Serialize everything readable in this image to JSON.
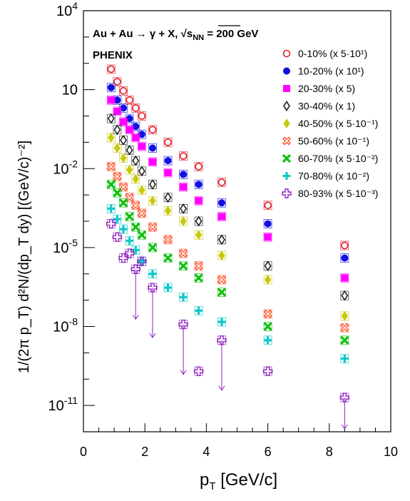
{
  "chart_data": {
    "type": "scatter",
    "title": "Au + Au → γ + X, √s",
    "title_sub": "NN",
    "title_tail": " = 200 GeV",
    "experiment": "PHENIX",
    "xlabel": "p",
    "xlabel_sub": "T",
    "xlabel_unit": " [GeV/c]",
    "ylabel": "1/(2π p_T) d²N/(dp_T dy) [(GeV/c)⁻²]",
    "xlim": [
      0,
      10
    ],
    "ylim": [
      1e-12,
      10000
    ],
    "yscale": "log",
    "x_ticks": [
      "0",
      "2",
      "4",
      "6",
      "8",
      "10"
    ],
    "y_ticks": [
      {
        "base": "10",
        "exp": "4"
      },
      {
        "base": "10",
        "exp": ""
      },
      {
        "base": "10",
        "exp": "-2"
      },
      {
        "base": "10",
        "exp": "-5"
      },
      {
        "base": "10",
        "exp": "-8"
      },
      {
        "base": "10",
        "exp": "-11"
      }
    ],
    "grid": false,
    "legend_position": "top-right",
    "x": [
      0.9,
      1.1,
      1.3,
      1.5,
      1.7,
      1.9,
      2.25,
      2.75,
      3.25,
      3.75,
      4.5,
      6.0,
      8.5
    ],
    "series": [
      {
        "name": "0-10% (x 5·10¹)",
        "color": "#e0202a",
        "marker": "open-circle",
        "values": [
          60,
          20,
          9,
          4,
          2,
          1,
          0.3,
          0.1,
          0.03,
          0.012,
          0.003,
          0.0004,
          1.2e-05
        ]
      },
      {
        "name": "10-20% (x 10¹)",
        "color": "#1010e0",
        "marker": "filled-circle",
        "values": [
          12,
          4,
          2,
          0.8,
          0.4,
          0.2,
          0.06,
          0.02,
          0.006,
          0.0025,
          0.0005,
          8e-05,
          4e-06
        ]
      },
      {
        "name": "20-30% (x 5)",
        "color": "#ff00ff",
        "marker": "filled-square",
        "values": [
          4,
          1.5,
          0.6,
          0.3,
          0.15,
          0.07,
          0.018,
          0.007,
          0.002,
          0.0006,
          0.00015,
          2.5e-05,
          7e-07
        ]
      },
      {
        "name": "30-40% (x 1)",
        "color": "#222222",
        "marker": "open-diamond",
        "values": [
          0.8,
          0.3,
          0.12,
          0.05,
          0.02,
          0.008,
          0.0025,
          0.0008,
          0.0003,
          0.0001,
          2e-05,
          2e-06,
          1.5e-07
        ]
      },
      {
        "name": "40-50% (x 5·10⁻¹)",
        "color": "#c8c810",
        "marker": "filled-diamond",
        "values": [
          0.15,
          0.06,
          0.025,
          0.009,
          0.004,
          0.0015,
          0.0006,
          0.00025,
          0.0001,
          3e-05,
          5e-06,
          6e-07,
          2.5e-08
        ]
      },
      {
        "name": "50-60% (x 10⁻¹)",
        "color": "#ff5530",
        "marker": "open-cross",
        "values": [
          0.012,
          0.005,
          0.002,
          0.0008,
          0.0004,
          0.0002,
          6e-05,
          2e-05,
          6e-06,
          2e-06,
          6e-07,
          3e-08,
          9e-09
        ]
      },
      {
        "name": "60-70% (x 5·10⁻²)",
        "color": "#10c010",
        "marker": "filled-cross",
        "values": [
          0.0025,
          0.0012,
          0.0005,
          0.00015,
          6e-05,
          3e-05,
          1e-05,
          4e-06,
          2e-06,
          7e-07,
          2e-07,
          1e-08,
          3e-09
        ]
      },
      {
        "name": "70-80% (x 10⁻²)",
        "color": "#10c8c8",
        "marker": "filled-plus",
        "values": [
          0.0003,
          0.00012,
          5e-05,
          1.8e-05,
          8e-06,
          3e-06,
          1e-06,
          3e-07,
          1.3e-07,
          4e-08,
          1.5e-08,
          3e-09,
          6e-10
        ]
      },
      {
        "name": "80-93% (x 5·10⁻³)",
        "color": "#9020c0",
        "marker": "open-plus",
        "values": [
          8e-05,
          2.5e-05,
          4e-06,
          6e-06,
          1.5e-06,
          3e-06,
          3e-07,
          null,
          1.2e-08,
          2e-10,
          3e-09,
          2e-10,
          2e-11
        ]
      }
    ]
  }
}
